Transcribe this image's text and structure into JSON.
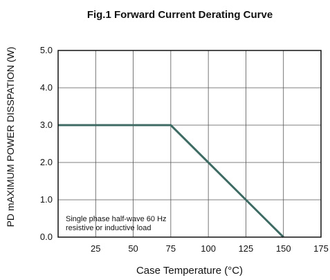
{
  "chart_data": {
    "type": "line",
    "title": "Fig.1  Forward Current Derating Curve",
    "xlabel": "Case Temperature (°C)",
    "ylabel": "PD mAXIMUM POWER DISSPATION (W)",
    "xlim": [
      0,
      175
    ],
    "ylim": [
      0,
      5.0
    ],
    "x_ticks": [
      25,
      50,
      75,
      100,
      125,
      150,
      175
    ],
    "x_tick_labels": [
      "25",
      "50",
      "75",
      "100",
      "125",
      "150",
      "175"
    ],
    "y_ticks": [
      0,
      1,
      2,
      3,
      4,
      5
    ],
    "y_tick_labels": [
      "0.0",
      "1.0",
      "2.0",
      "3.0",
      "4.0",
      "5.0"
    ],
    "grid": true,
    "series": [
      {
        "x": [
          0,
          75,
          150
        ],
        "y": [
          3.0,
          3.0,
          0.0
        ],
        "color": "#3d6b63"
      }
    ],
    "annotation": [
      "Single phase half-wave 60 Hz",
      "resistive or inductive load"
    ]
  }
}
